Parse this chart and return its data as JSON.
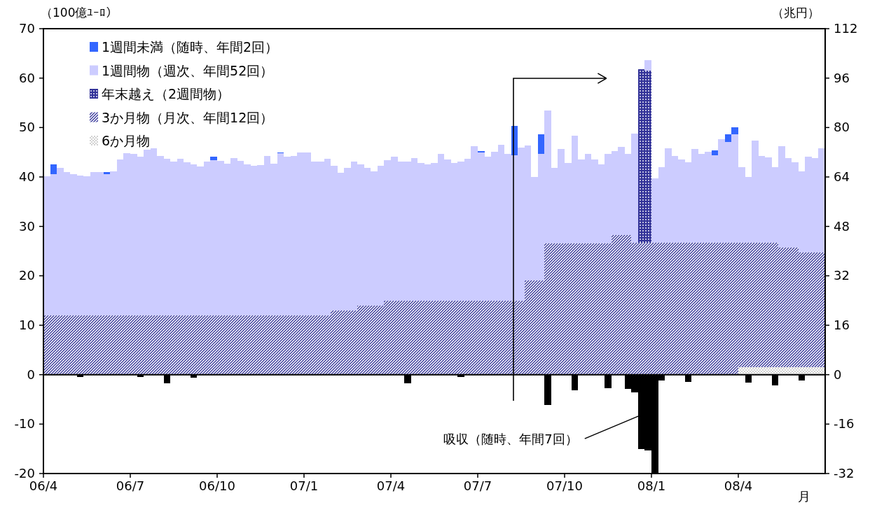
{
  "chart_data": {
    "type": "bar",
    "stacked": true,
    "legend": "top left",
    "ylabel": "（100億ﾕｰﾛ）",
    "y2label": "（兆円）",
    "xlabel": "月",
    "ylim": [
      -20,
      70
    ],
    "yticks": [
      -20,
      -10,
      0,
      10,
      20,
      30,
      40,
      50,
      60,
      70
    ],
    "y2lim": [
      -32,
      112
    ],
    "y2ticks": [
      -32,
      -16,
      0,
      16,
      32,
      48,
      64,
      80,
      96,
      112
    ],
    "categories": [
      "06/4",
      null,
      null,
      null,
      null,
      null,
      null,
      null,
      null,
      null,
      null,
      null,
      null,
      "06/7",
      null,
      null,
      null,
      null,
      null,
      null,
      null,
      null,
      null,
      null,
      null,
      null,
      "06/10",
      null,
      null,
      null,
      null,
      null,
      null,
      null,
      null,
      null,
      null,
      null,
      null,
      "07/1",
      null,
      null,
      null,
      null,
      null,
      null,
      null,
      null,
      null,
      null,
      null,
      null,
      "07/4",
      null,
      null,
      null,
      null,
      null,
      null,
      null,
      null,
      null,
      null,
      null,
      null,
      "07/7",
      null,
      null,
      null,
      null,
      null,
      null,
      null,
      null,
      null,
      null,
      null,
      null,
      "07/10",
      null,
      null,
      null,
      null,
      null,
      null,
      null,
      null,
      null,
      null,
      null,
      null,
      "08/1",
      null,
      null,
      null,
      null,
      null,
      null,
      null,
      null,
      null,
      null,
      null,
      null,
      "08/4",
      null,
      null,
      null,
      null,
      null,
      null,
      null,
      null,
      null,
      null,
      null,
      null
    ],
    "series": [
      {
        "name": "6か月物",
        "color": "#999999",
        "values": [
          null,
          null,
          null,
          null,
          null,
          null,
          null,
          null,
          null,
          null,
          null,
          null,
          null,
          null,
          null,
          null,
          null,
          null,
          null,
          null,
          null,
          null,
          null,
          null,
          null,
          null,
          null,
          null,
          null,
          null,
          null,
          null,
          null,
          null,
          null,
          null,
          null,
          null,
          null,
          null,
          null,
          null,
          null,
          null,
          null,
          null,
          null,
          null,
          null,
          null,
          null,
          null,
          null,
          null,
          null,
          null,
          null,
          null,
          null,
          null,
          null,
          null,
          null,
          null,
          null,
          null,
          null,
          null,
          null,
          null,
          null,
          null,
          null,
          null,
          null,
          null,
          null,
          null,
          null,
          null,
          null,
          null,
          null,
          null,
          null,
          null,
          null,
          null,
          null,
          null,
          null,
          null,
          null,
          null,
          null,
          null,
          null,
          null,
          null,
          null,
          null,
          null,
          null,
          null,
          1.5,
          1.5,
          1.5,
          1.5,
          1.5,
          1.5,
          1.5,
          1.5,
          1.5,
          1.5,
          1.5,
          1.5,
          1.5
        ]
      },
      {
        "name": "3か月物（月次、年間12回）",
        "color": "#333399",
        "values": [
          12,
          12,
          12,
          12,
          12,
          12,
          12,
          12,
          12,
          12,
          12,
          12,
          12,
          12,
          12,
          12,
          12,
          12,
          12,
          12,
          12,
          12,
          12,
          12,
          12,
          12,
          12,
          12,
          12,
          12,
          12,
          12,
          12,
          12,
          12,
          12,
          12,
          12,
          12,
          12,
          12,
          12,
          12,
          13,
          13,
          13,
          13,
          14,
          14,
          14,
          14,
          15,
          15,
          15,
          15,
          15,
          15,
          15,
          15,
          15,
          15,
          15,
          15,
          15,
          15,
          15,
          15,
          15,
          15,
          15,
          15,
          15,
          19,
          19,
          19,
          26.5,
          26.5,
          26.5,
          26.5,
          26.5,
          26.5,
          26.5,
          26.5,
          26.5,
          26.5,
          28.3,
          28.3,
          28.3,
          26.7,
          26.7,
          26.7,
          26.7,
          26.7,
          26.7,
          26.7,
          26.7,
          26.7,
          26.7,
          26.7,
          26.7,
          26.7,
          26.7,
          26.7,
          26.7,
          25.2,
          25.2,
          25.2,
          25.2,
          25.2,
          25.2,
          24.2,
          24.2,
          24.2,
          23.2,
          23.2,
          23.2,
          23.2
        ]
      },
      {
        "name": "年末越え（2週間物）",
        "color": "#333399",
        "values": [
          null,
          null,
          null,
          null,
          null,
          null,
          null,
          null,
          null,
          null,
          null,
          null,
          null,
          null,
          null,
          null,
          null,
          null,
          null,
          null,
          null,
          null,
          null,
          null,
          null,
          null,
          null,
          null,
          null,
          null,
          null,
          null,
          null,
          null,
          null,
          null,
          null,
          null,
          null,
          null,
          null,
          null,
          null,
          null,
          null,
          null,
          null,
          null,
          null,
          null,
          null,
          null,
          null,
          null,
          null,
          null,
          null,
          null,
          null,
          null,
          null,
          null,
          null,
          null,
          null,
          null,
          null,
          null,
          null,
          null,
          null,
          null,
          null,
          null,
          null,
          null,
          null,
          null,
          null,
          null,
          null,
          null,
          null,
          null,
          null,
          null,
          null,
          null,
          null,
          35.1,
          34.8,
          null,
          null,
          null,
          null,
          null,
          null,
          null,
          null,
          null,
          null,
          null,
          null,
          null,
          null,
          null,
          null,
          null,
          null,
          null,
          null,
          null,
          null,
          null,
          null,
          null,
          null
        ]
      },
      {
        "name": "1週間物（週次、年間52回）",
        "color": "#ccccff",
        "values": [
          28.1,
          28.6,
          29.8,
          29.0,
          28.5,
          28.3,
          28.2,
          29.0,
          29.0,
          28.5,
          29.2,
          31.6,
          32.8,
          32.6,
          32.1,
          33.5,
          33.8,
          32.2,
          31.7,
          31.1,
          31.7,
          31.0,
          30.6,
          30.1,
          31.1,
          31.4,
          31.3,
          30.7,
          31.8,
          31.3,
          30.6,
          30.2,
          30.4,
          32.2,
          30.7,
          32.8,
          32.1,
          32.2,
          33.0,
          33.0,
          31.1,
          31.1,
          31.7,
          29.2,
          27.8,
          28.8,
          30.1,
          28.6,
          27.9,
          27.2,
          28.2,
          28.4,
          29.1,
          28.1,
          28.1,
          28.8,
          27.8,
          27.6,
          27.9,
          29.6,
          28.5,
          27.8,
          28.1,
          28.7,
          31.2,
          30.0,
          29.1,
          30.1,
          31.5,
          29.7,
          29.4,
          31.0,
          27.4,
          21.0,
          25.6,
          26.9,
          15.4,
          19.1,
          16.3,
          21.8,
          17.0,
          18.1,
          17.0,
          16.0,
          18.1,
          16.9,
          17.8,
          16.4,
          22.1,
          null,
          2.2,
          13.0,
          15.3,
          19.1,
          17.6,
          16.9,
          16.3,
          18.9,
          17.9,
          18.4,
          17.7,
          21.0,
          20.4,
          21.9,
          15.3,
          13.3,
          20.7,
          17.6,
          17.2,
          15.3,
          20.5,
          18.1,
          17.3,
          16.5,
          19.4,
          19.1,
          21.1
        ]
      },
      {
        "name": "1週間未満（随時、年間2回）",
        "color": "#3366ff",
        "values": [
          null,
          2.0,
          null,
          null,
          null,
          null,
          null,
          null,
          null,
          0.5,
          null,
          null,
          null,
          null,
          null,
          null,
          null,
          null,
          null,
          null,
          null,
          null,
          null,
          null,
          null,
          0.7,
          null,
          null,
          null,
          null,
          null,
          null,
          null,
          null,
          null,
          0.2,
          null,
          null,
          null,
          null,
          null,
          null,
          null,
          null,
          null,
          null,
          null,
          null,
          null,
          null,
          null,
          null,
          null,
          null,
          null,
          null,
          null,
          null,
          null,
          null,
          null,
          null,
          null,
          null,
          null,
          0.2,
          null,
          null,
          null,
          null,
          6.0,
          null,
          null,
          null,
          4.1,
          null,
          null,
          null,
          null,
          null,
          null,
          null,
          null,
          null,
          null,
          null,
          null,
          null,
          null,
          null,
          null,
          null,
          null,
          null,
          null,
          null,
          null,
          null,
          null,
          null,
          1.0,
          null,
          1.6,
          1.5,
          null,
          null,
          null,
          null,
          null,
          null,
          null,
          null,
          null,
          null,
          null,
          null,
          null
        ]
      },
      {
        "color": "#000000",
        "values": [
          null,
          null,
          null,
          null,
          null,
          -0.5,
          null,
          null,
          null,
          null,
          null,
          null,
          null,
          null,
          -0.5,
          null,
          null,
          null,
          -1.8,
          null,
          null,
          null,
          -0.6,
          null,
          null,
          null,
          null,
          null,
          null,
          null,
          null,
          null,
          null,
          null,
          null,
          null,
          null,
          null,
          null,
          null,
          null,
          null,
          null,
          null,
          null,
          null,
          null,
          null,
          null,
          null,
          null,
          null,
          null,
          null,
          -1.8,
          null,
          null,
          null,
          null,
          null,
          null,
          null,
          -0.5,
          null,
          null,
          null,
          null,
          null,
          null,
          null,
          null,
          null,
          null,
          null,
          null,
          -6.1,
          null,
          null,
          null,
          -3.2,
          null,
          null,
          null,
          null,
          -2.8,
          null,
          null,
          -2.9,
          -3.6,
          -15.0,
          -15.3,
          -19.8,
          -1.2,
          null,
          null,
          null,
          -1.5,
          null,
          null,
          null,
          null,
          null,
          null,
          null,
          null,
          -1.6,
          null,
          null,
          null,
          -2.2,
          null,
          null,
          null,
          -1.2,
          null,
          null,
          null
        ]
      }
    ],
    "annotations": [
      {
        "text": "吸収（随時、年間7回）",
        "x": "08/1",
        "y": -7
      }
    ]
  }
}
